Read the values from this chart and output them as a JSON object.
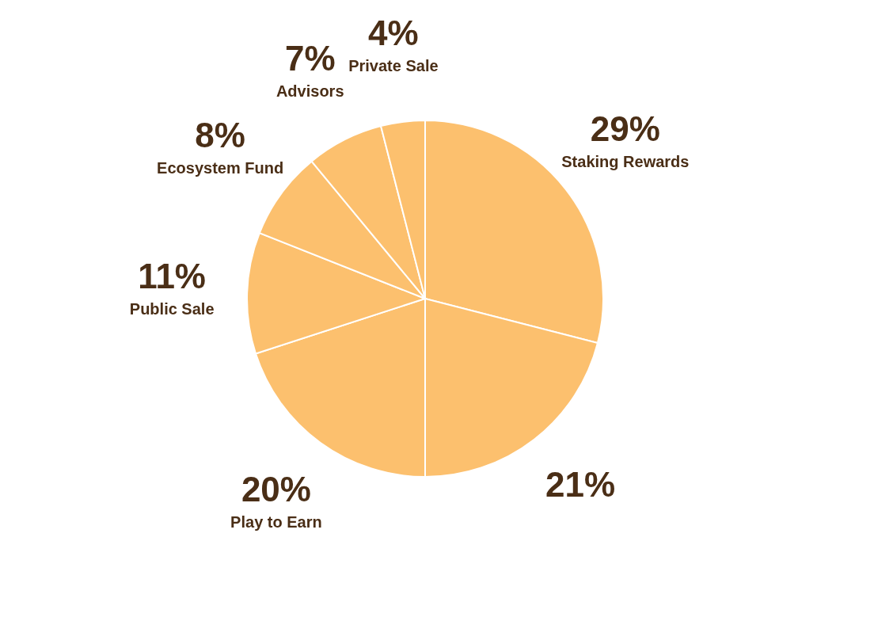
{
  "chart_data": {
    "type": "pie",
    "categories": [
      "Staking Rewards",
      null,
      "Play to Earn",
      "Public Sale",
      "Ecosystem Fund",
      "Advisors",
      "Private Sale"
    ],
    "values": [
      29,
      21,
      20,
      11,
      8,
      7,
      4
    ],
    "value_labels": [
      "29%",
      "21%",
      "20%",
      "11%",
      "8%",
      "7%",
      "4%"
    ],
    "colors": [
      "#fcc06e",
      "#fcc06e",
      "#fcc06e",
      "#fcc06e",
      "#fcc06e",
      "#fcc06e",
      "#fcc06e"
    ],
    "legend": false
  }
}
